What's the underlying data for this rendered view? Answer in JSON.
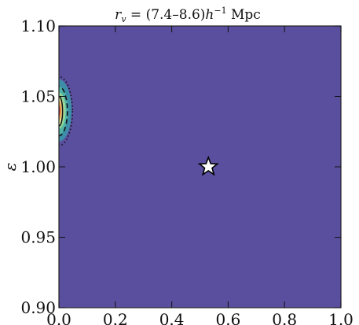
{
  "chart_data": {
    "type": "heatmap",
    "title": "r_v = (7.4–8.6)h^-1 Mpc",
    "title_parts": {
      "sym": "r",
      "sub": "v",
      "eq": " = (7.4–8.6)",
      "h": "h",
      "sup": "−1",
      "unit": " Mpc"
    },
    "xlabel": "",
    "ylabel": "ε",
    "xlim": [
      0.0,
      1.0
    ],
    "ylim": [
      0.9,
      1.1
    ],
    "x_ticks": [
      0.0,
      0.2,
      0.4,
      0.6,
      0.8,
      1.0
    ],
    "x_tick_labels": [
      "0.0",
      "0.2",
      "0.4",
      "0.6",
      "0.8",
      "1.0"
    ],
    "y_ticks": [
      0.9,
      0.95,
      1.0,
      1.05,
      1.1
    ],
    "y_tick_labels": [
      "0.90",
      "0.95",
      "1.00",
      "1.05",
      "1.10"
    ],
    "grid": false,
    "background_color": "#5a4e9e",
    "marker": {
      "shape": "star",
      "x": 0.53,
      "y": 1.0,
      "fill": "#ffffff",
      "stroke": "#000000"
    },
    "contour_peak": {
      "x": 0.0,
      "y": 1.04
    },
    "filled_levels": [
      {
        "x_extent": 0.045,
        "y_min": 1.018,
        "y_max": 1.062,
        "color": "#3d8ea8"
      },
      {
        "x_extent": 0.032,
        "y_min": 1.023,
        "y_max": 1.057,
        "color": "#4fb3a7"
      },
      {
        "x_extent": 0.024,
        "y_min": 1.027,
        "y_max": 1.053,
        "color": "#8fd49b"
      },
      {
        "x_extent": 0.017,
        "y_min": 1.03,
        "y_max": 1.05,
        "color": "#e8f2a0"
      },
      {
        "x_extent": 0.009,
        "y_min": 1.033,
        "y_max": 1.047,
        "color": "#f39a4f"
      },
      {
        "x_extent": 0.004,
        "y_min": 1.036,
        "y_max": 1.044,
        "color": "#b0243f"
      }
    ],
    "contour_lines": [
      {
        "x_extent": 0.048,
        "y_min": 1.015,
        "y_max": 1.064,
        "style": "dotted"
      },
      {
        "x_extent": 0.03,
        "y_min": 1.022,
        "y_max": 1.057,
        "style": "dashed"
      },
      {
        "x_extent": 0.013,
        "y_min": 1.029,
        "y_max": 1.05,
        "style": "solid"
      }
    ]
  }
}
